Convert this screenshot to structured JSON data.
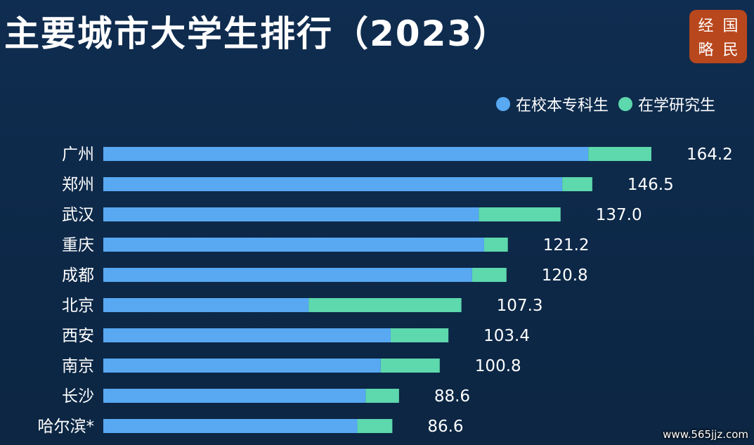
{
  "title": "主要城市大学生排行（2023）",
  "logo_chars": [
    "经",
    "国",
    "略",
    "民"
  ],
  "watermark_url": "www.565jjz.com",
  "colors": {
    "background": "#0e2a4a",
    "undergrad": "#58a8f2",
    "graduate": "#5ed8ad",
    "logo": "#b8471d"
  },
  "chart_data": {
    "type": "bar",
    "orientation": "horizontal",
    "stacked": true,
    "legend_position": "top-right",
    "categories": [
      "广州",
      "郑州",
      "武汉",
      "重庆",
      "成都",
      "北京",
      "西安",
      "南京",
      "长沙",
      "哈尔滨*"
    ],
    "series": [
      {
        "name": "在校本专科生",
        "color": "#58a8f2",
        "values": [
          145.3,
          137.5,
          112.5,
          114.1,
          110.5,
          61.5,
          86.1,
          83.1,
          78.6,
          76.1
        ]
      },
      {
        "name": "在学研究生",
        "color": "#5ed8ad",
        "values": [
          18.9,
          9.0,
          24.5,
          7.1,
          10.3,
          45.8,
          17.3,
          17.7,
          10.0,
          10.5
        ]
      }
    ],
    "totals": [
      "164.2",
      "146.5",
      "137.0",
      "121.2",
      "120.8",
      "107.3",
      "103.4",
      "100.8",
      "88.6",
      "86.6"
    ],
    "xlim": [
      0,
      170
    ]
  }
}
